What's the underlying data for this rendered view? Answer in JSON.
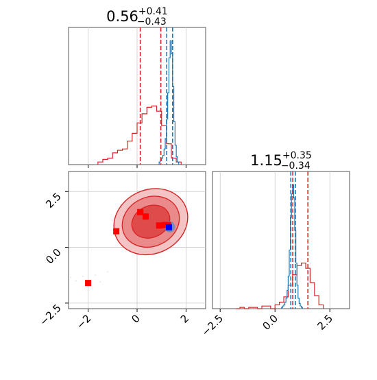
{
  "chart_data": [
    {
      "type": "histogram",
      "panel": "top-left",
      "title": {
        "value": "0.56",
        "plus": "+0.41",
        "minus": "−0.43"
      },
      "xlim": [
        -2.8,
        2.8
      ],
      "grid": true,
      "show_tick_labels": false,
      "quantile_lines": [
        {
          "series": "red",
          "values": [
            0.13,
            0.97
          ]
        },
        {
          "series": "blue",
          "values": [
            1.21,
            1.45
          ]
        }
      ],
      "series": [
        {
          "id": "red",
          "color": "#d62728",
          "ylim": [
            0,
            1
          ],
          "bin_edges": [
            -1.6,
            -1.4,
            -1.2,
            -1.0,
            -0.8,
            -0.6,
            -0.4,
            -0.2,
            0.0,
            0.2,
            0.4,
            0.6,
            0.8,
            1.0,
            1.2,
            1.4,
            1.6,
            1.8
          ],
          "counts": [
            0.02,
            0.04,
            0.05,
            0.09,
            0.11,
            0.12,
            0.18,
            0.24,
            0.32,
            0.39,
            0.44,
            0.45,
            0.41,
            0.3,
            0.16,
            0.05,
            0.02
          ]
        },
        {
          "id": "blue",
          "color": "#1f77b4",
          "ylim": [
            0,
            1
          ],
          "bin_edges": [
            0.9,
            0.95,
            1.0,
            1.05,
            1.1,
            1.15,
            1.2,
            1.25,
            1.3,
            1.35,
            1.4,
            1.45,
            1.5,
            1.55,
            1.6,
            1.65,
            1.7
          ],
          "counts": [
            0.02,
            0.03,
            0.05,
            0.07,
            0.12,
            0.2,
            0.35,
            0.55,
            0.82,
            0.95,
            0.85,
            0.6,
            0.33,
            0.15,
            0.06,
            0.02
          ]
        }
      ]
    },
    {
      "type": "scatter-contour",
      "panel": "bottom-left",
      "xlim": [
        -2.8,
        2.8
      ],
      "ylim": [
        -2.75,
        3.4
      ],
      "grid": true,
      "x_ticks": [
        -2,
        0,
        2
      ],
      "x_tick_labels": [
        "−2",
        "0",
        "2"
      ],
      "y_ticks": [
        -2.5,
        0.0,
        2.5
      ],
      "y_tick_labels": [
        "−2.5",
        "0.0",
        "2.5"
      ],
      "contours": {
        "color": "#d62728",
        "center": [
          0.56,
          1.15
        ],
        "levels": [
          {
            "rx": 1.55,
            "ry": 0.65,
            "fill": "#f4c3c3"
          },
          {
            "rx": 1.2,
            "ry": 0.5,
            "fill": "#eb8a8a"
          },
          {
            "rx": 0.8,
            "ry": 0.32,
            "fill": "#df4a4a"
          }
        ],
        "angle_deg": -25
      },
      "blue_blob": {
        "center": [
          1.33,
          0.92
        ],
        "rx": 0.22,
        "ry": 0.25,
        "color": "#5b8fc2"
      },
      "markers": [
        {
          "x": -2.0,
          "y": -1.6,
          "color": "#ff0000"
        },
        {
          "x": -0.85,
          "y": 0.72,
          "color": "#ff0000"
        },
        {
          "x": 0.13,
          "y": 1.58,
          "color": "#ff0000"
        },
        {
          "x": 0.35,
          "y": 1.38,
          "color": "#ff0000"
        },
        {
          "x": 0.9,
          "y": 0.98,
          "color": "#ff0000"
        },
        {
          "x": 1.12,
          "y": 1.0,
          "color": "#ff0000"
        },
        {
          "x": 1.27,
          "y": 1.0,
          "color": "#ff0000"
        },
        {
          "x": 1.3,
          "y": 0.9,
          "color": "#0000ff"
        }
      ],
      "scatter_points": [
        [
          -2.7,
          -1.35
        ],
        [
          -2.5,
          -1.5
        ],
        [
          -2.2,
          -1.3
        ],
        [
          -1.7,
          -1.25
        ],
        [
          -1.5,
          -1.55
        ],
        [
          -1.2,
          -1.1
        ],
        [
          -1.0,
          1.2
        ],
        [
          -0.7,
          1.9
        ],
        [
          -0.5,
          2.05
        ],
        [
          -0.3,
          1.95
        ],
        [
          -0.6,
          0.4
        ],
        [
          -0.4,
          0.2
        ],
        [
          0.2,
          0.05
        ],
        [
          0.5,
          0.25
        ],
        [
          0.9,
          2.0
        ],
        [
          1.2,
          1.8
        ],
        [
          1.5,
          1.55
        ],
        [
          1.7,
          1.2
        ],
        [
          -0.2,
          0.7
        ],
        [
          0.0,
          0.5
        ],
        [
          -0.8,
          1.5
        ],
        [
          0.3,
          2.2
        ],
        [
          1.0,
          0.3
        ],
        [
          1.45,
          0.55
        ]
      ]
    },
    {
      "type": "histogram",
      "panel": "bottom-right",
      "title": {
        "value": "1.15",
        "plus": "+0.35",
        "minus": "−0.34"
      },
      "xlim": [
        -2.85,
        3.4
      ],
      "grid": true,
      "x_ticks": [
        -2.5,
        0.0,
        2.5
      ],
      "x_tick_labels": [
        "−2.5",
        "0.0",
        "2.5"
      ],
      "quantile_lines": [
        {
          "series": "red",
          "values": [
            0.81,
            1.5
          ]
        },
        {
          "series": "blue",
          "values": [
            0.72,
            0.93
          ]
        }
      ],
      "series": [
        {
          "id": "red",
          "color": "#d62728",
          "ylim": [
            0,
            1
          ],
          "bin_edges": [
            -1.8,
            -1.6,
            -1.4,
            -1.2,
            -1.0,
            -0.8,
            -0.6,
            -0.4,
            -0.2,
            0.0,
            0.2,
            0.4,
            0.6,
            0.8,
            1.0,
            1.2,
            1.4,
            1.6,
            1.8,
            2.0,
            2.2
          ],
          "counts": [
            0.0,
            0.01,
            0.0,
            0.01,
            0.01,
            0.0,
            0.02,
            0.02,
            0.0,
            0.03,
            0.05,
            0.09,
            0.18,
            0.26,
            0.33,
            0.35,
            0.31,
            0.2,
            0.1,
            0.03
          ]
        },
        {
          "id": "blue",
          "color": "#1f77b4",
          "ylim": [
            0,
            1
          ],
          "bin_edges": [
            0.3,
            0.35,
            0.4,
            0.45,
            0.5,
            0.55,
            0.6,
            0.65,
            0.7,
            0.75,
            0.8,
            0.85,
            0.9,
            0.95,
            1.0,
            1.05,
            1.1,
            1.15,
            1.2,
            1.25
          ],
          "counts": [
            0.01,
            0.02,
            0.03,
            0.05,
            0.08,
            0.14,
            0.25,
            0.45,
            0.7,
            0.88,
            0.95,
            0.85,
            0.6,
            0.35,
            0.18,
            0.08,
            0.04,
            0.02,
            0.01
          ]
        }
      ]
    }
  ]
}
